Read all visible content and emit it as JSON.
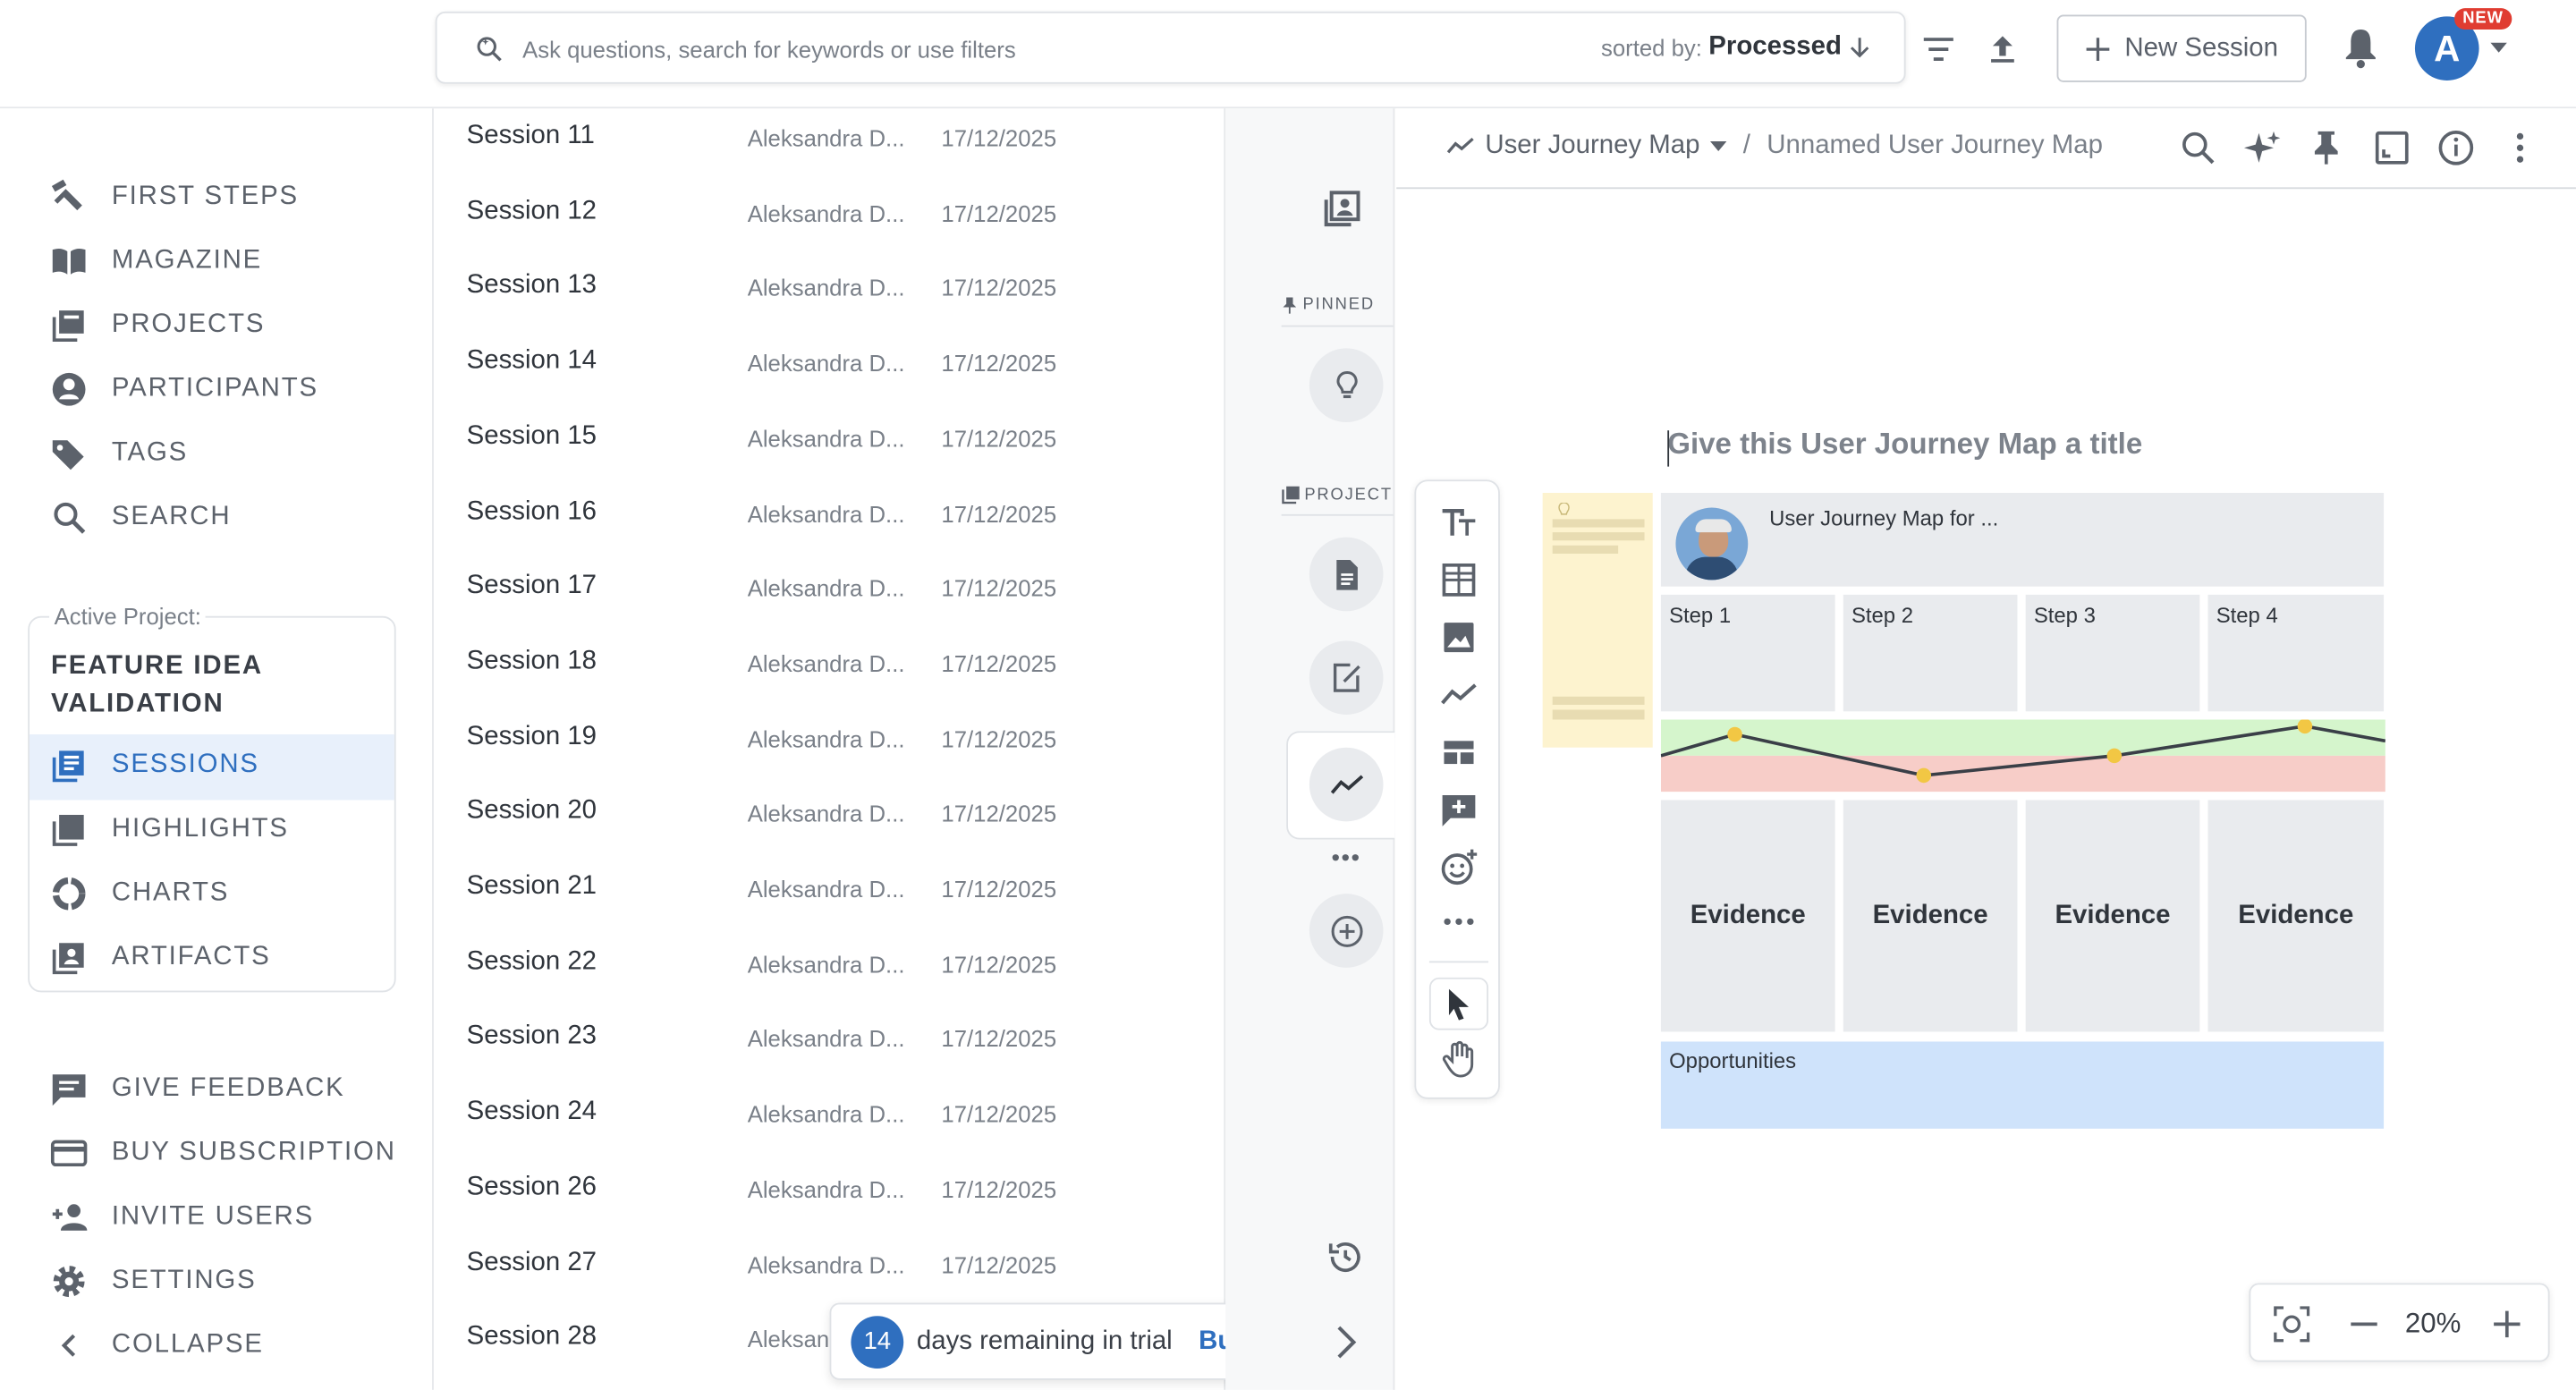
{
  "search": {
    "placeholder": "Ask questions, search for keywords or use filters",
    "sorted_label": "sorted by:",
    "sorted_value": "Processed"
  },
  "header": {
    "new_session_label": "New Session",
    "avatar_letter": "A",
    "new_badge": "NEW"
  },
  "sidebar": {
    "top_items": [
      {
        "label": "FIRST STEPS",
        "icon": "first-steps-icon"
      },
      {
        "label": "MAGAZINE",
        "icon": "magazine-icon"
      },
      {
        "label": "PROJECTS",
        "icon": "projects-icon"
      },
      {
        "label": "PARTICIPANTS",
        "icon": "participants-icon"
      },
      {
        "label": "TAGS",
        "icon": "tags-icon"
      },
      {
        "label": "SEARCH",
        "icon": "search-icon"
      }
    ],
    "active_project_label": "Active Project:",
    "active_project_name_line1": "FEATURE IDEA",
    "active_project_name_line2": "VALIDATION",
    "project_items": [
      {
        "label": "SESSIONS",
        "icon": "sessions-icon",
        "selected": true
      },
      {
        "label": "HIGHLIGHTS",
        "icon": "highlights-icon"
      },
      {
        "label": "CHARTS",
        "icon": "charts-icon"
      },
      {
        "label": "ARTIFACTS",
        "icon": "artifacts-icon"
      }
    ],
    "bottom_items": [
      {
        "label": "GIVE FEEDBACK",
        "icon": "feedback-icon"
      },
      {
        "label": "BUY SUBSCRIPTION",
        "icon": "credit-card-icon"
      },
      {
        "label": "INVITE USERS",
        "icon": "invite-user-icon"
      },
      {
        "label": "SETTINGS",
        "icon": "gear-icon"
      },
      {
        "label": "COLLAPSE",
        "icon": "chevron-left-icon"
      }
    ]
  },
  "sessions": [
    {
      "name": "Session 11",
      "author": "Aleksandra D...",
      "date": "17/12/2025"
    },
    {
      "name": "Session 12",
      "author": "Aleksandra D...",
      "date": "17/12/2025"
    },
    {
      "name": "Session 13",
      "author": "Aleksandra D...",
      "date": "17/12/2025"
    },
    {
      "name": "Session 14",
      "author": "Aleksandra D...",
      "date": "17/12/2025"
    },
    {
      "name": "Session 15",
      "author": "Aleksandra D...",
      "date": "17/12/2025"
    },
    {
      "name": "Session 16",
      "author": "Aleksandra D...",
      "date": "17/12/2025"
    },
    {
      "name": "Session 17",
      "author": "Aleksandra D...",
      "date": "17/12/2025"
    },
    {
      "name": "Session 18",
      "author": "Aleksandra D...",
      "date": "17/12/2025"
    },
    {
      "name": "Session 19",
      "author": "Aleksandra D...",
      "date": "17/12/2025"
    },
    {
      "name": "Session 20",
      "author": "Aleksandra D...",
      "date": "17/12/2025"
    },
    {
      "name": "Session 21",
      "author": "Aleksandra D...",
      "date": "17/12/2025"
    },
    {
      "name": "Session 22",
      "author": "Aleksandra D...",
      "date": "17/12/2025"
    },
    {
      "name": "Session 23",
      "author": "Aleksandra D...",
      "date": "17/12/2025"
    },
    {
      "name": "Session 24",
      "author": "Aleksandra D...",
      "date": "17/12/2025"
    },
    {
      "name": "Session 26",
      "author": "Aleksandra D...",
      "date": "17/12/2025"
    },
    {
      "name": "Session 27",
      "author": "Aleksandra D...",
      "date": "17/12/2025"
    },
    {
      "name": "Session 28",
      "author": "Aleksan",
      "date": ""
    }
  ],
  "trial": {
    "days": "14",
    "text": "days remaining in trial",
    "buy": "Buy"
  },
  "rail": {
    "pinned": "PINNED",
    "project": "PROJECT"
  },
  "canvas": {
    "type_label": "User Journey Map",
    "doc_name": "Unnamed User Journey Map",
    "title_placeholder": "Give this User Journey Map a title",
    "persona_text": "User Journey Map for ...",
    "steps": [
      "Step 1",
      "Step 2",
      "Step 3",
      "Step 4"
    ],
    "evidence_label": "Evidence",
    "opportunities_label": "Opportunities",
    "zoom": "20%"
  }
}
